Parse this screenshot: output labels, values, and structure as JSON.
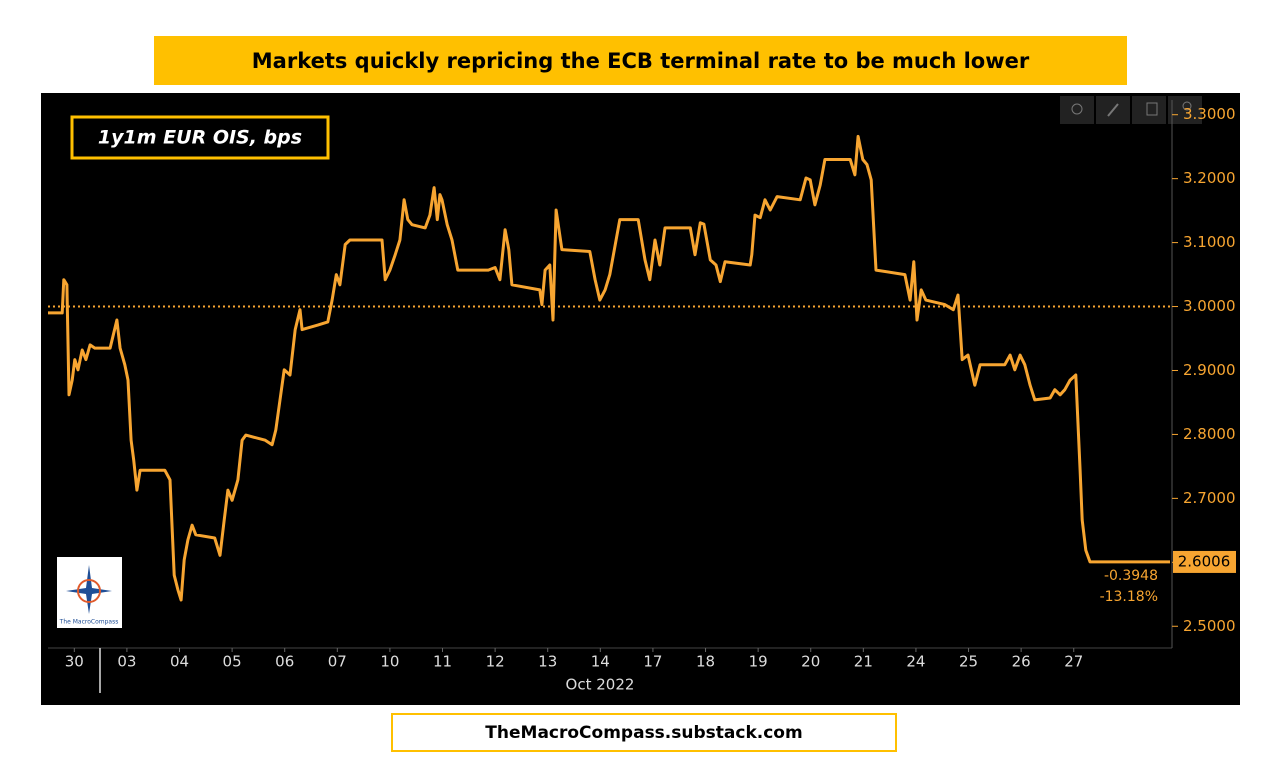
{
  "chart_data": {
    "type": "line",
    "title": "Markets quickly repricing the ECB terminal rate to be much lower",
    "source": "TheMacroCompass.substack.com",
    "logo_text": "The MacroCompass",
    "xlabel": "Oct 2022",
    "xlim": [
      0,
      21.33
    ],
    "xticks": [
      {
        "value": 0.5,
        "label": "30"
      },
      {
        "value": 1.5,
        "label": "03"
      },
      {
        "value": 2.5,
        "label": "04"
      },
      {
        "value": 3.5,
        "label": "05"
      },
      {
        "value": 4.5,
        "label": "06"
      },
      {
        "value": 5.5,
        "label": "07"
      },
      {
        "value": 6.5,
        "label": "10"
      },
      {
        "value": 7.5,
        "label": "11"
      },
      {
        "value": 8.5,
        "label": "12"
      },
      {
        "value": 9.5,
        "label": "13"
      },
      {
        "value": 10.5,
        "label": "14"
      },
      {
        "value": 11.5,
        "label": "17"
      },
      {
        "value": 12.5,
        "label": "18"
      },
      {
        "value": 13.5,
        "label": "19"
      },
      {
        "value": 14.5,
        "label": "20"
      },
      {
        "value": 15.5,
        "label": "21"
      },
      {
        "value": 16.5,
        "label": "24"
      },
      {
        "value": 17.5,
        "label": "25"
      },
      {
        "value": 18.5,
        "label": "26"
      },
      {
        "value": 19.5,
        "label": "27"
      }
    ],
    "ylim": [
      2.466,
      3.323
    ],
    "yticks": [
      {
        "value": 2.5,
        "label": "2.5000"
      },
      {
        "value": 2.6,
        "label": "2.6000"
      },
      {
        "value": 2.7,
        "label": "2.7000"
      },
      {
        "value": 2.8,
        "label": "2.8000"
      },
      {
        "value": 2.9,
        "label": "2.9000"
      },
      {
        "value": 3.0,
        "label": "3.0000"
      },
      {
        "value": 3.1,
        "label": "3.1000"
      },
      {
        "value": 3.2,
        "label": "3.2000"
      },
      {
        "value": 3.3,
        "label": "3.3000"
      }
    ],
    "reference_line": 3.0,
    "last_value_label": "2.6006",
    "change_label": "-0.3948",
    "change_pct_label": "-13.18%",
    "x": [
      0,
      0.27,
      0.3,
      0.36,
      0.4,
      0.46,
      0.51,
      0.57,
      0.65,
      0.72,
      0.8,
      0.89,
      1.18,
      1.31,
      1.37,
      1.46,
      1.52,
      1.58,
      1.63,
      1.69,
      1.75,
      2.22,
      2.32,
      2.4,
      2.47,
      2.53,
      2.59,
      2.66,
      2.74,
      2.81,
      3.17,
      3.27,
      3.35,
      3.42,
      3.5,
      3.61,
      3.69,
      3.76,
      4.13,
      4.26,
      4.33,
      4.41,
      4.49,
      4.6,
      4.7,
      4.79,
      4.83,
      5.13,
      5.32,
      5.4,
      5.48,
      5.55,
      5.65,
      5.74,
      6.35,
      6.41,
      6.5,
      6.6,
      6.69,
      6.77,
      6.84,
      6.92,
      7.17,
      7.26,
      7.34,
      7.4,
      7.45,
      7.49,
      7.59,
      7.68,
      7.79,
      8.37,
      8.5,
      8.59,
      8.69,
      8.76,
      8.82,
      9.35,
      9.39,
      9.45,
      9.54,
      9.6,
      9.66,
      9.77,
      10.3,
      10.4,
      10.49,
      10.59,
      10.68,
      10.87,
      11.22,
      11.35,
      11.44,
      11.54,
      11.63,
      11.73,
      12.21,
      12.3,
      12.4,
      12.47,
      12.59,
      12.7,
      12.78,
      12.87,
      13.35,
      13.38,
      13.44,
      13.54,
      13.63,
      13.73,
      13.86,
      14.3,
      14.41,
      14.49,
      14.58,
      14.68,
      14.77,
      15.25,
      15.34,
      15.4,
      15.49,
      15.57,
      15.65,
      15.74,
      16.29,
      16.39,
      16.46,
      16.52,
      16.6,
      16.69,
      17.05,
      17.21,
      17.3,
      17.38,
      17.49,
      17.62,
      17.72,
      18.19,
      18.29,
      18.38,
      18.48,
      18.57,
      18.67,
      18.76,
      19.05,
      19.14,
      19.24,
      19.33,
      19.43,
      19.54,
      19.62,
      19.66,
      19.73,
      19.81,
      21.33
    ],
    "series": [
      {
        "name": "1y1m EUR OIS, bps",
        "color": "#f7a531",
        "values": [
          2.99,
          2.99,
          3.042,
          3.034,
          2.862,
          2.885,
          2.917,
          2.901,
          2.932,
          2.917,
          2.94,
          2.935,
          2.935,
          2.979,
          2.935,
          2.909,
          2.885,
          2.791,
          2.76,
          2.713,
          2.744,
          2.744,
          2.729,
          2.58,
          2.557,
          2.541,
          2.604,
          2.635,
          2.658,
          2.643,
          2.638,
          2.611,
          2.666,
          2.713,
          2.697,
          2.729,
          2.791,
          2.799,
          2.791,
          2.784,
          2.807,
          2.854,
          2.901,
          2.893,
          2.964,
          2.995,
          2.964,
          2.971,
          2.976,
          3.01,
          3.05,
          3.034,
          3.097,
          3.104,
          3.104,
          3.042,
          3.057,
          3.081,
          3.104,
          3.167,
          3.136,
          3.128,
          3.123,
          3.143,
          3.186,
          3.136,
          3.175,
          3.167,
          3.128,
          3.104,
          3.057,
          3.057,
          3.061,
          3.042,
          3.12,
          3.089,
          3.034,
          3.026,
          3.003,
          3.057,
          3.065,
          2.979,
          3.151,
          3.089,
          3.086,
          3.042,
          3.01,
          3.026,
          3.05,
          3.136,
          3.136,
          3.073,
          3.042,
          3.104,
          3.065,
          3.123,
          3.123,
          3.081,
          3.131,
          3.129,
          3.073,
          3.065,
          3.039,
          3.07,
          3.065,
          3.081,
          3.143,
          3.139,
          3.167,
          3.151,
          3.172,
          3.167,
          3.201,
          3.198,
          3.159,
          3.19,
          3.23,
          3.23,
          3.206,
          3.266,
          3.23,
          3.222,
          3.198,
          3.057,
          3.05,
          3.01,
          3.07,
          2.979,
          3.026,
          3.01,
          3.003,
          2.995,
          3.018,
          2.917,
          2.924,
          2.877,
          2.909,
          2.909,
          2.924,
          2.901,
          2.924,
          2.909,
          2.877,
          2.854,
          2.857,
          2.87,
          2.862,
          2.87,
          2.885,
          2.893,
          2.744,
          2.666,
          2.619,
          2.6006,
          2.6006
        ]
      }
    ]
  }
}
